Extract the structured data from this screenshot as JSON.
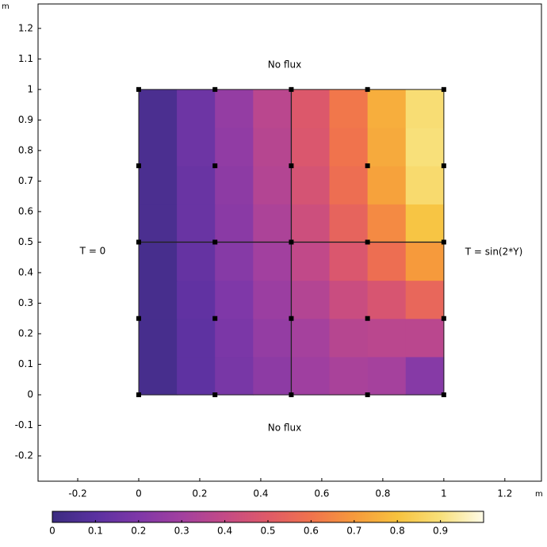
{
  "chart_data": {
    "type": "heatmap",
    "x_unit": "m",
    "y_unit": "m",
    "xlim": [
      -0.33,
      1.32
    ],
    "ylim": [
      -0.283,
      1.28
    ],
    "xticks": [
      -0.2,
      0,
      0.2,
      0.4,
      0.6,
      0.8,
      1,
      1.2
    ],
    "yticks": [
      -0.2,
      -0.1,
      0,
      0.1,
      0.2,
      0.3,
      0.4,
      0.5,
      0.6,
      0.7,
      0.8,
      0.9,
      1,
      1.1,
      1.2
    ],
    "field": {
      "x_edges": [
        0,
        0.125,
        0.25,
        0.375,
        0.5,
        0.625,
        0.75,
        0.875,
        1
      ],
      "y_edges": [
        0,
        0.125,
        0.25,
        0.375,
        0.5,
        0.625,
        0.75,
        0.875,
        1
      ],
      "values": [
        [
          0.04,
          0.11,
          0.18,
          0.24,
          0.29,
          0.32,
          0.31,
          0.22
        ],
        [
          0.04,
          0.11,
          0.19,
          0.26,
          0.31,
          0.36,
          0.37,
          0.37
        ],
        [
          0.04,
          0.12,
          0.2,
          0.28,
          0.35,
          0.42,
          0.47,
          0.55
        ],
        [
          0.04,
          0.13,
          0.22,
          0.3,
          0.39,
          0.48,
          0.58,
          0.7
        ],
        [
          0.05,
          0.14,
          0.23,
          0.33,
          0.43,
          0.54,
          0.66,
          0.81
        ],
        [
          0.05,
          0.14,
          0.24,
          0.35,
          0.46,
          0.58,
          0.72,
          0.88
        ],
        [
          0.05,
          0.15,
          0.25,
          0.36,
          0.48,
          0.6,
          0.74,
          0.9
        ],
        [
          0.05,
          0.15,
          0.26,
          0.37,
          0.49,
          0.61,
          0.75,
          0.89
        ]
      ]
    },
    "mesh_nodes": {
      "x": [
        0,
        0.25,
        0.5,
        0.75,
        1
      ],
      "y": [
        0,
        0.25,
        0.5,
        0.75,
        1
      ]
    },
    "interior_lines": {
      "x": [
        0.5
      ],
      "y": [
        0.5
      ]
    },
    "colormap": [
      "#3b2c80",
      "#5a31a0",
      "#7f38a8",
      "#a2409f",
      "#c44a86",
      "#df5a68",
      "#f0734d",
      "#f69a3c",
      "#f7c23e",
      "#f8e07a",
      "#fefbe8"
    ],
    "clim": [
      0,
      1
    ],
    "colorbar_ticks": [
      0,
      0.1,
      0.2,
      0.3,
      0.4,
      0.5,
      0.6,
      0.7,
      0.8,
      0.9
    ],
    "annotations": [
      "No flux",
      "No flux",
      "T = 0",
      "T = sin(2*Y)"
    ]
  }
}
